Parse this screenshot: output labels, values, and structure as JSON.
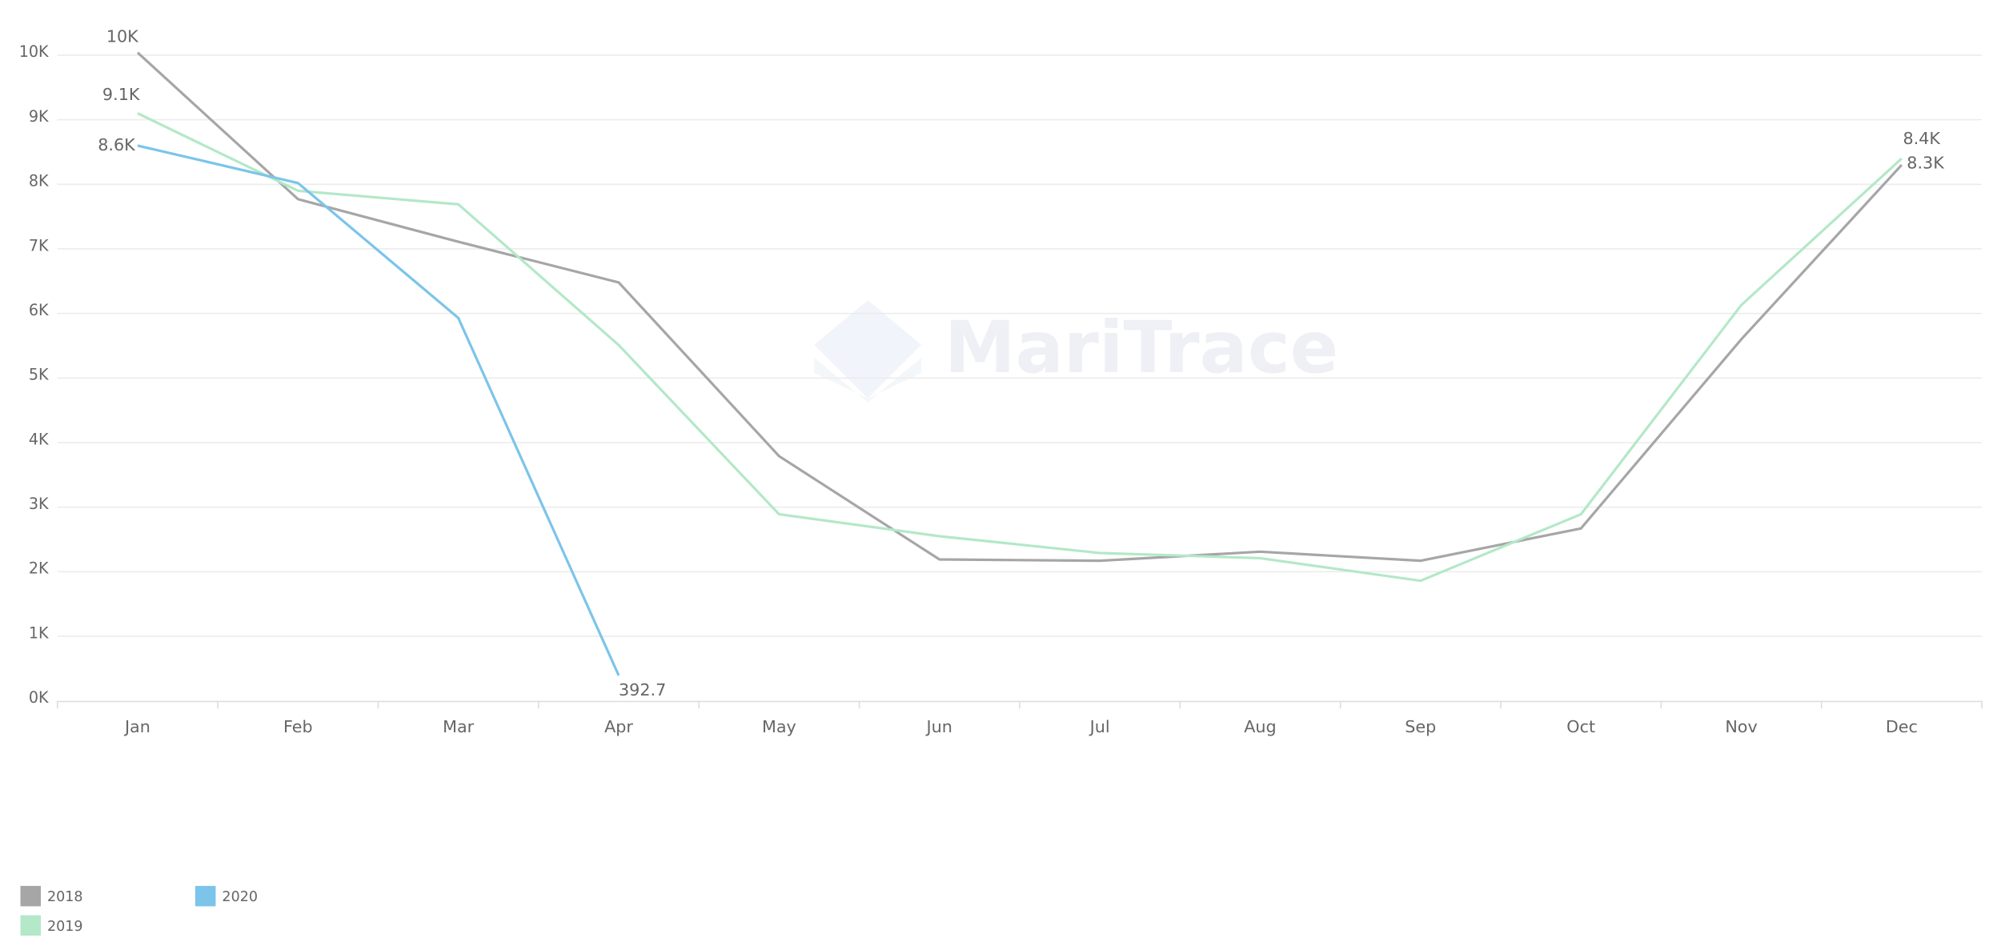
{
  "chart_data": {
    "type": "line",
    "watermark": "MariTrace",
    "categories": [
      "Jan",
      "Feb",
      "Mar",
      "Apr",
      "May",
      "Jun",
      "Jul",
      "Aug",
      "Sep",
      "Oct",
      "Nov",
      "Dec"
    ],
    "ylim": [
      0,
      10000
    ],
    "yticks": [
      {
        "value": 0,
        "label": "0K"
      },
      {
        "value": 1000,
        "label": "1K"
      },
      {
        "value": 2000,
        "label": "2K"
      },
      {
        "value": 3000,
        "label": "3K"
      },
      {
        "value": 4000,
        "label": "4K"
      },
      {
        "value": 5000,
        "label": "5K"
      },
      {
        "value": 6000,
        "label": "6K"
      },
      {
        "value": 7000,
        "label": "7K"
      },
      {
        "value": 8000,
        "label": "8K"
      },
      {
        "value": 9000,
        "label": "9K"
      },
      {
        "value": 10000,
        "label": "10K"
      }
    ],
    "grid": true,
    "series": [
      {
        "name": "2018",
        "color": "#a6a6a6",
        "values": [
          10040,
          7770,
          7110,
          6480,
          3790,
          2190,
          2170,
          2310,
          2170,
          2670,
          5600,
          8300
        ],
        "value_labels": [
          "10K",
          null,
          null,
          null,
          null,
          null,
          null,
          null,
          null,
          null,
          null,
          "8.3K"
        ]
      },
      {
        "name": "2019",
        "color": "#b3e8c8",
        "values": [
          9100,
          7900,
          7690,
          5510,
          2890,
          2550,
          2290,
          2210,
          1860,
          2890,
          6130,
          8400
        ],
        "value_labels": [
          "9.1K",
          null,
          null,
          null,
          null,
          null,
          null,
          null,
          null,
          null,
          null,
          "8.4K"
        ]
      },
      {
        "name": "2020",
        "color": "#7cc4ea",
        "values": [
          8600,
          8020,
          5930,
          392.7,
          null,
          null,
          null,
          null,
          null,
          null,
          null,
          null
        ],
        "value_labels": [
          "8.6K",
          null,
          null,
          "392.7",
          null,
          null,
          null,
          null,
          null,
          null,
          null,
          null
        ]
      }
    ]
  }
}
